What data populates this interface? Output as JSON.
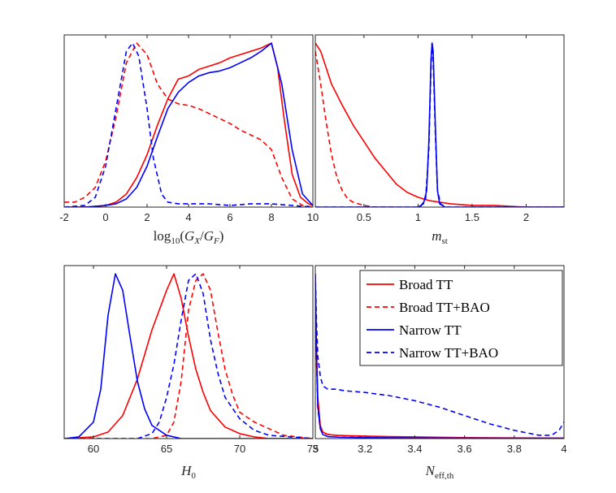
{
  "colors": {
    "broad": "#ff0000",
    "narrow": "#0000ff",
    "axis": "#262626"
  },
  "legend": {
    "items": [
      {
        "label": "Broad TT",
        "color": "#ff0000",
        "dash": false
      },
      {
        "label": "Broad TT+BAO",
        "color": "#ff0000",
        "dash": true
      },
      {
        "label": "Narrow TT",
        "color": "#0000ff",
        "dash": false
      },
      {
        "label": "Narrow TT+BAO",
        "color": "#0000ff",
        "dash": true
      }
    ]
  },
  "chart_data": [
    {
      "type": "line",
      "xlabel": "log10(GX/GF)",
      "xlim": [
        -2,
        10
      ],
      "ylim": [
        0,
        1.05
      ],
      "xticks": [
        -2,
        0,
        2,
        4,
        6,
        8,
        10
      ],
      "series": [
        {
          "name": "Broad TT",
          "color": "#ff0000",
          "dash": false,
          "x": [
            -2,
            -1,
            0,
            0.5,
            1,
            1.5,
            2,
            2.5,
            3,
            3.5,
            4,
            4.5,
            5,
            5.5,
            6,
            6.5,
            7,
            7.5,
            8,
            8.3,
            8.6,
            9,
            9.4,
            9.8,
            10
          ],
          "y": [
            0,
            0,
            0.01,
            0.03,
            0.08,
            0.18,
            0.32,
            0.5,
            0.66,
            0.78,
            0.8,
            0.84,
            0.86,
            0.88,
            0.91,
            0.93,
            0.95,
            0.97,
            1.0,
            0.85,
            0.55,
            0.2,
            0.06,
            0.02,
            0.01
          ]
        },
        {
          "name": "Broad TT+BAO",
          "color": "#ff0000",
          "dash": true,
          "x": [
            -2,
            -1.5,
            -1,
            -0.5,
            0,
            0.5,
            1,
            1.5,
            2,
            2.5,
            3,
            3.5,
            4,
            4.5,
            5,
            5.5,
            6,
            6.5,
            7,
            7.5,
            8,
            8.5,
            9,
            9.5,
            10
          ],
          "y": [
            0.03,
            0.03,
            0.06,
            0.12,
            0.28,
            0.55,
            0.88,
            1.0,
            0.93,
            0.75,
            0.66,
            0.63,
            0.62,
            0.6,
            0.57,
            0.54,
            0.51,
            0.47,
            0.44,
            0.41,
            0.35,
            0.18,
            0.05,
            0.01,
            0.0
          ]
        },
        {
          "name": "Narrow TT",
          "color": "#0000ff",
          "dash": false,
          "x": [
            -2,
            -1,
            0,
            0.5,
            1,
            1.5,
            2,
            2.5,
            3,
            3.5,
            4,
            4.5,
            5,
            5.5,
            6,
            6.5,
            7,
            7.5,
            8,
            8.5,
            9,
            9.5,
            10
          ],
          "y": [
            0,
            0,
            0.01,
            0.02,
            0.05,
            0.12,
            0.25,
            0.43,
            0.6,
            0.7,
            0.76,
            0.8,
            0.82,
            0.83,
            0.85,
            0.88,
            0.91,
            0.95,
            1.0,
            0.75,
            0.35,
            0.08,
            0.01
          ]
        },
        {
          "name": "Narrow TT+BAO",
          "color": "#0000ff",
          "dash": true,
          "x": [
            -2,
            -1,
            -0.5,
            0,
            0.5,
            1,
            1.3,
            1.6,
            2,
            2.3,
            2.7,
            3,
            3.5,
            4,
            5,
            6,
            7,
            8,
            9,
            10
          ],
          "y": [
            0.0,
            0.01,
            0.06,
            0.25,
            0.6,
            0.95,
            1.0,
            0.92,
            0.6,
            0.3,
            0.08,
            0.03,
            0.02,
            0.02,
            0.02,
            0.01,
            0.02,
            0.02,
            0.01,
            0.0
          ]
        }
      ]
    },
    {
      "type": "line",
      "xlabel": "mst",
      "xlim": [
        0.05,
        2.35
      ],
      "ylim": [
        0,
        1.05
      ],
      "xticks": [
        0.5,
        1,
        1.5,
        2
      ],
      "series": [
        {
          "name": "Broad TT",
          "color": "#ff0000",
          "dash": false,
          "x": [
            0.05,
            0.1,
            0.15,
            0.2,
            0.3,
            0.4,
            0.5,
            0.6,
            0.7,
            0.8,
            0.9,
            1.0,
            1.1,
            1.3,
            1.5,
            1.7,
            2.0,
            2.35
          ],
          "y": [
            1.0,
            0.95,
            0.85,
            0.75,
            0.62,
            0.5,
            0.4,
            0.3,
            0.22,
            0.14,
            0.09,
            0.06,
            0.04,
            0.02,
            0.01,
            0.01,
            0.0,
            0.0
          ]
        },
        {
          "name": "Broad TT+BAO",
          "color": "#ff0000",
          "dash": true,
          "x": [
            0.05,
            0.1,
            0.15,
            0.2,
            0.25,
            0.3,
            0.35,
            0.4,
            0.45,
            0.5,
            0.6,
            0.7,
            0.8
          ],
          "y": [
            0.95,
            0.75,
            0.52,
            0.32,
            0.18,
            0.1,
            0.05,
            0.03,
            0.02,
            0.01,
            0.0,
            0.0,
            0.0
          ]
        },
        {
          "name": "Narrow TT",
          "color": "#0000ff",
          "dash": false,
          "x": [
            0.05,
            1.0,
            1.05,
            1.08,
            1.1,
            1.12,
            1.13,
            1.14,
            1.16,
            1.18,
            1.2,
            1.25,
            2.35
          ],
          "y": [
            0,
            0,
            0.02,
            0.1,
            0.4,
            0.9,
            1.0,
            0.95,
            0.5,
            0.1,
            0.02,
            0,
            0
          ]
        },
        {
          "name": "Narrow TT+BAO",
          "color": "#0000ff",
          "dash": true,
          "x": [
            0.05,
            1.02,
            1.07,
            1.1,
            1.12,
            1.13,
            1.14,
            1.16,
            1.18,
            1.21,
            1.25,
            2.35
          ],
          "y": [
            0,
            0,
            0.05,
            0.35,
            0.85,
            1.0,
            0.9,
            0.45,
            0.1,
            0.02,
            0,
            0
          ]
        }
      ]
    },
    {
      "type": "line",
      "xlabel": "H0",
      "xlim": [
        58,
        75
      ],
      "ylim": [
        0,
        1.05
      ],
      "xticks": [
        60,
        65,
        70,
        75
      ],
      "series": [
        {
          "name": "Broad TT",
          "color": "#ff0000",
          "dash": false,
          "x": [
            58,
            60,
            61,
            62,
            63,
            64,
            64.5,
            65,
            65.5,
            66,
            66.5,
            67,
            67.5,
            68,
            69,
            70,
            71,
            72,
            75
          ],
          "y": [
            0,
            0.01,
            0.04,
            0.14,
            0.36,
            0.66,
            0.78,
            0.9,
            1.0,
            0.85,
            0.62,
            0.42,
            0.28,
            0.17,
            0.07,
            0.03,
            0.01,
            0.0,
            0.0
          ]
        },
        {
          "name": "Broad TT+BAO",
          "color": "#ff0000",
          "dash": true,
          "x": [
            58,
            64,
            65,
            65.5,
            66,
            66.5,
            67,
            67.5,
            68,
            68.5,
            69,
            69.5,
            70,
            71,
            72,
            73,
            75
          ],
          "y": [
            0,
            0,
            0.02,
            0.1,
            0.35,
            0.78,
            0.96,
            1.0,
            0.9,
            0.65,
            0.42,
            0.27,
            0.16,
            0.1,
            0.06,
            0.02,
            0.0
          ]
        },
        {
          "name": "Narrow TT",
          "color": "#0000ff",
          "dash": false,
          "x": [
            58,
            59,
            60,
            60.5,
            61,
            61.5,
            62,
            62.5,
            63,
            63.5,
            64,
            65,
            66,
            75
          ],
          "y": [
            0,
            0.01,
            0.1,
            0.3,
            0.75,
            1.0,
            0.9,
            0.62,
            0.35,
            0.18,
            0.08,
            0.02,
            0.0,
            0.0
          ]
        },
        {
          "name": "Narrow TT+BAO",
          "color": "#0000ff",
          "dash": true,
          "x": [
            58,
            63,
            64,
            64.5,
            65,
            65.5,
            66,
            66.5,
            67,
            67.5,
            68,
            68.5,
            69,
            70,
            71,
            72,
            75
          ],
          "y": [
            0,
            0,
            0.03,
            0.1,
            0.25,
            0.45,
            0.72,
            0.96,
            1.0,
            0.88,
            0.6,
            0.4,
            0.25,
            0.12,
            0.05,
            0.02,
            0.0
          ]
        }
      ]
    },
    {
      "type": "line",
      "xlabel": "Neff,th",
      "xlim": [
        3.0,
        4.0
      ],
      "ylim": [
        0,
        1.05
      ],
      "xticks": [
        3,
        3.2,
        3.4,
        3.6,
        3.8,
        4
      ],
      "series": [
        {
          "name": "Broad TT",
          "color": "#ff0000",
          "dash": false,
          "x": [
            3.0,
            3.005,
            3.01,
            3.02,
            3.03,
            3.05,
            3.08,
            3.12,
            3.2,
            3.3,
            3.4,
            3.5,
            3.6,
            3.8,
            4.0
          ],
          "y": [
            1.0,
            0.55,
            0.25,
            0.08,
            0.04,
            0.025,
            0.02,
            0.018,
            0.015,
            0.012,
            0.01,
            0.008,
            0.006,
            0.004,
            0.003
          ]
        },
        {
          "name": "Broad TT+BAO",
          "color": "#ff0000",
          "dash": true,
          "x": [
            3.0,
            3.005,
            3.01,
            3.02,
            3.03,
            3.05,
            3.1,
            3.2,
            3.3,
            3.4,
            3.6,
            3.8,
            4.0
          ],
          "y": [
            0.95,
            0.45,
            0.18,
            0.06,
            0.035,
            0.025,
            0.018,
            0.012,
            0.008,
            0.006,
            0.004,
            0.003,
            0.002
          ]
        },
        {
          "name": "Narrow TT",
          "color": "#0000ff",
          "dash": false,
          "x": [
            3.0,
            3.005,
            3.01,
            3.02,
            3.03,
            3.05,
            3.1,
            3.2,
            3.4,
            3.6,
            3.8,
            4.0
          ],
          "y": [
            0.98,
            0.5,
            0.2,
            0.06,
            0.025,
            0.012,
            0.008,
            0.006,
            0.004,
            0.003,
            0.002,
            0.002
          ]
        },
        {
          "name": "Narrow TT+BAO",
          "color": "#0000ff",
          "dash": true,
          "x": [
            3.0,
            3.005,
            3.01,
            3.02,
            3.03,
            3.05,
            3.08,
            3.12,
            3.2,
            3.3,
            3.4,
            3.5,
            3.6,
            3.7,
            3.8,
            3.9,
            3.95,
            3.98,
            4.0
          ],
          "y": [
            1.0,
            0.7,
            0.5,
            0.38,
            0.32,
            0.3,
            0.3,
            0.29,
            0.28,
            0.26,
            0.23,
            0.19,
            0.14,
            0.09,
            0.05,
            0.02,
            0.02,
            0.05,
            0.1
          ]
        }
      ]
    }
  ]
}
